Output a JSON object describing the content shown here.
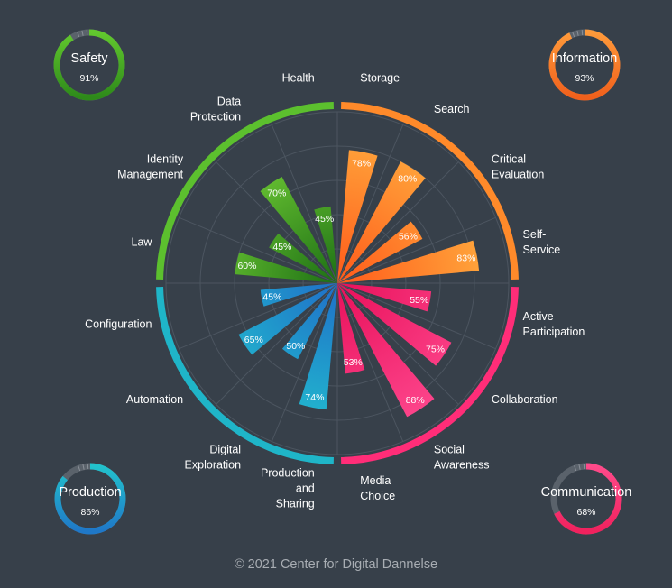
{
  "chart_data": {
    "type": "bar",
    "polar": true,
    "value_unit": "%",
    "rlim": [
      0,
      100
    ],
    "grid": true,
    "categories": [
      {
        "label": [
          "Storage"
        ],
        "value": 78,
        "group": "Information"
      },
      {
        "label": [
          "Search"
        ],
        "value": 80,
        "group": "Information"
      },
      {
        "label": [
          "Critical",
          "Evaluation"
        ],
        "value": 56,
        "group": "Information"
      },
      {
        "label": [
          "Self-",
          "Service"
        ],
        "value": 83,
        "group": "Information"
      },
      {
        "label": [
          "Active",
          "Participation"
        ],
        "value": 55,
        "group": "Communication"
      },
      {
        "label": [
          "Collaboration"
        ],
        "value": 75,
        "group": "Communication"
      },
      {
        "label": [
          "Social",
          "Awareness"
        ],
        "value": 88,
        "group": "Communication"
      },
      {
        "label": [
          "Media",
          "Choice"
        ],
        "value": 53,
        "group": "Communication"
      },
      {
        "label": [
          "Production",
          "and",
          "Sharing"
        ],
        "value": 74,
        "group": "Production"
      },
      {
        "label": [
          "Digital",
          "Exploration"
        ],
        "value": 50,
        "group": "Production"
      },
      {
        "label": [
          "Automation"
        ],
        "value": 65,
        "group": "Production"
      },
      {
        "label": [
          "Configuration"
        ],
        "value": 45,
        "group": "Production"
      },
      {
        "label": [
          "Law"
        ],
        "value": 60,
        "group": "Safety"
      },
      {
        "label": [
          "Identity",
          "Management"
        ],
        "value": 45,
        "group": "Safety"
      },
      {
        "label": [
          "Data",
          "Protection"
        ],
        "value": 70,
        "group": "Safety"
      },
      {
        "label": [
          "Health"
        ],
        "value": 45,
        "group": "Safety"
      }
    ],
    "groups": [
      {
        "name": "Information",
        "value": 93,
        "color": "#ff8a2a",
        "corner": "top-right"
      },
      {
        "name": "Communication",
        "value": 68,
        "color": "#ff2d78",
        "corner": "bottom-right"
      },
      {
        "name": "Production",
        "value": 86,
        "color": "#1fb5c8",
        "corner": "bottom-left"
      },
      {
        "name": "Safety",
        "value": 91,
        "color": "#5cc02e",
        "corner": "top-left"
      }
    ]
  },
  "footer": {
    "copyright_symbol": "©",
    "text": "2021 Center for Digital Dannelse"
  }
}
